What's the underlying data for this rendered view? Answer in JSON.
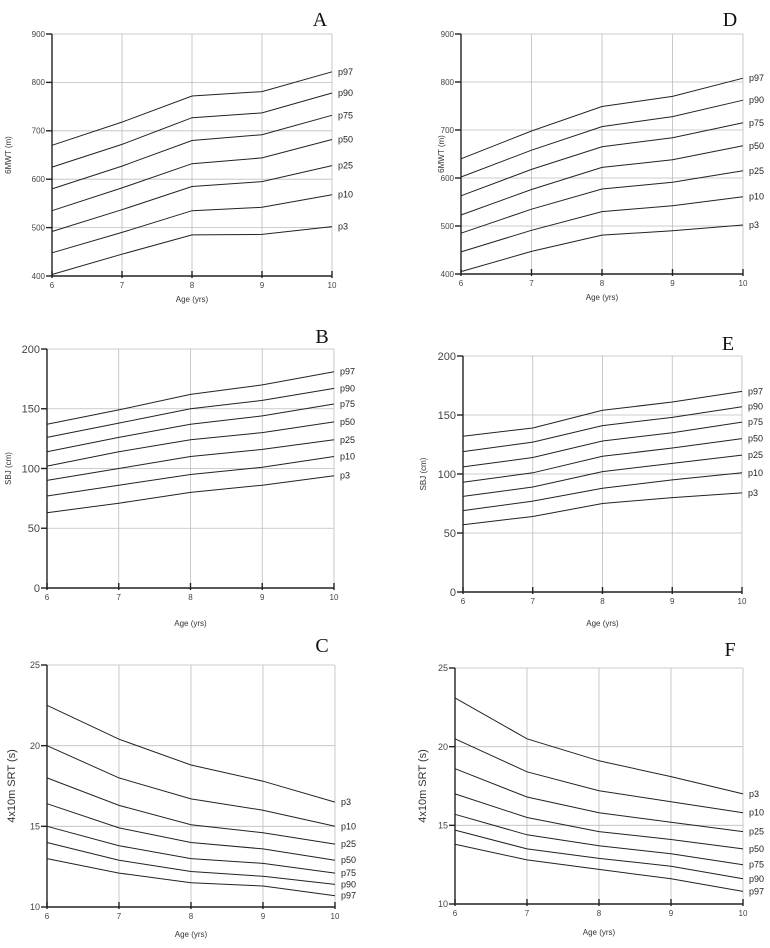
{
  "chart_data": [
    {
      "panel": "A",
      "type": "line",
      "xlabel": "Age (yrs)",
      "ylabel": "6MWT (m)",
      "xlim": [
        6,
        10
      ],
      "ylim": [
        400,
        900
      ],
      "x": [
        6,
        7,
        8,
        9,
        10
      ],
      "xticks": [
        6,
        7,
        8,
        9,
        10
      ],
      "yticks": [
        400,
        500,
        600,
        700,
        800,
        900
      ],
      "grid": true,
      "series": [
        {
          "name": "p97",
          "values": [
            670,
            718,
            772,
            781,
            822
          ]
        },
        {
          "name": "p90",
          "values": [
            625,
            672,
            727,
            737,
            778
          ]
        },
        {
          "name": "p75",
          "values": [
            580,
            627,
            680,
            692,
            732
          ]
        },
        {
          "name": "p50",
          "values": [
            535,
            582,
            632,
            644,
            682
          ]
        },
        {
          "name": "p25",
          "values": [
            492,
            537,
            585,
            595,
            628
          ]
        },
        {
          "name": "p10",
          "values": [
            448,
            490,
            535,
            542,
            568
          ]
        },
        {
          "name": "p3",
          "values": [
            403,
            445,
            485,
            486,
            502
          ]
        }
      ]
    },
    {
      "panel": "B",
      "type": "line",
      "xlabel": "Age (yrs)",
      "ylabel": "SBJ (cm)",
      "xlim": [
        6,
        10
      ],
      "ylim": [
        0,
        200
      ],
      "x": [
        6,
        7,
        8,
        9,
        10
      ],
      "xticks": [
        6,
        7,
        8,
        9,
        10
      ],
      "yticks": [
        0,
        50,
        100,
        150,
        200
      ],
      "grid": true,
      "series": [
        {
          "name": "p97",
          "values": [
            137,
            149,
            162,
            170,
            181
          ]
        },
        {
          "name": "p90",
          "values": [
            126,
            138,
            150,
            157,
            167
          ]
        },
        {
          "name": "p75",
          "values": [
            114,
            126,
            137,
            144,
            154
          ]
        },
        {
          "name": "p50",
          "values": [
            102,
            114,
            124,
            130,
            139
          ]
        },
        {
          "name": "p25",
          "values": [
            90,
            100,
            110,
            116,
            124
          ]
        },
        {
          "name": "p10",
          "values": [
            77,
            86,
            95,
            101,
            110
          ]
        },
        {
          "name": "p3",
          "values": [
            63,
            71,
            80,
            86,
            94
          ]
        }
      ]
    },
    {
      "panel": "C",
      "type": "line",
      "xlabel": "Age (yrs)",
      "ylabel": "4x10m SRT (s)",
      "xlim": [
        6,
        10
      ],
      "ylim": [
        10,
        25
      ],
      "x": [
        6,
        7,
        8,
        9,
        10
      ],
      "xticks": [
        6,
        7,
        8,
        9,
        10
      ],
      "yticks": [
        10,
        15,
        20,
        25
      ],
      "grid": true,
      "series": [
        {
          "name": "p3",
          "values": [
            22.5,
            20.4,
            18.8,
            17.8,
            16.5
          ]
        },
        {
          "name": "p10",
          "values": [
            20.0,
            18.0,
            16.7,
            16.0,
            15.0
          ]
        },
        {
          "name": "p25",
          "values": [
            18.0,
            16.3,
            15.1,
            14.6,
            13.9
          ]
        },
        {
          "name": "p50",
          "values": [
            16.4,
            14.9,
            14.0,
            13.6,
            12.9
          ]
        },
        {
          "name": "p75",
          "values": [
            15.0,
            13.8,
            13.0,
            12.7,
            12.1
          ]
        },
        {
          "name": "p90",
          "values": [
            14.0,
            12.9,
            12.2,
            11.9,
            11.4
          ]
        },
        {
          "name": "p97",
          "values": [
            13.0,
            12.1,
            11.5,
            11.3,
            10.7
          ]
        }
      ]
    },
    {
      "panel": "D",
      "type": "line",
      "xlabel": "Age (yrs)",
      "ylabel": "6MWT (m)",
      "xlim": [
        6,
        10
      ],
      "ylim": [
        400,
        900
      ],
      "x": [
        6,
        7,
        8,
        9,
        10
      ],
      "xticks": [
        6,
        7,
        8,
        9,
        10
      ],
      "yticks": [
        400,
        500,
        600,
        700,
        800,
        900
      ],
      "grid": true,
      "series": [
        {
          "name": "p97",
          "values": [
            640,
            698,
            749,
            770,
            808
          ]
        },
        {
          "name": "p90",
          "values": [
            602,
            658,
            707,
            728,
            762
          ]
        },
        {
          "name": "p75",
          "values": [
            563,
            618,
            665,
            684,
            715
          ]
        },
        {
          "name": "p50",
          "values": [
            523,
            576,
            622,
            638,
            667
          ]
        },
        {
          "name": "p25",
          "values": [
            485,
            535,
            577,
            591,
            615
          ]
        },
        {
          "name": "p10",
          "values": [
            446,
            491,
            530,
            542,
            561
          ]
        },
        {
          "name": "p3",
          "values": [
            405,
            447,
            481,
            490,
            502
          ]
        }
      ]
    },
    {
      "panel": "E",
      "type": "line",
      "xlabel": "Age (yrs)",
      "ylabel": "SBJ (cm)",
      "xlim": [
        6,
        10
      ],
      "ylim": [
        0,
        200
      ],
      "x": [
        6,
        7,
        8,
        9,
        10
      ],
      "xticks": [
        6,
        7,
        8,
        9,
        10
      ],
      "yticks": [
        0,
        50,
        100,
        150,
        200
      ],
      "grid": true,
      "series": [
        {
          "name": "p97",
          "values": [
            132,
            139,
            154,
            161,
            170
          ]
        },
        {
          "name": "p90",
          "values": [
            119,
            127,
            141,
            148,
            157
          ]
        },
        {
          "name": "p75",
          "values": [
            106,
            114,
            128,
            135,
            144
          ]
        },
        {
          "name": "p50",
          "values": [
            93,
            101,
            115,
            122,
            130
          ]
        },
        {
          "name": "p25",
          "values": [
            81,
            89,
            102,
            109,
            116
          ]
        },
        {
          "name": "p10",
          "values": [
            69,
            77,
            88,
            95,
            101
          ]
        },
        {
          "name": "p3",
          "values": [
            57,
            64,
            75,
            80,
            84
          ]
        }
      ]
    },
    {
      "panel": "F",
      "type": "line",
      "xlabel": "Age (yrs)",
      "ylabel": "4x10m SRT (s)",
      "xlim": [
        6,
        10
      ],
      "ylim": [
        10,
        25
      ],
      "x": [
        6,
        7,
        8,
        9,
        10
      ],
      "xticks": [
        6,
        7,
        8,
        9,
        10
      ],
      "yticks": [
        10,
        15,
        20,
        25
      ],
      "grid": true,
      "series": [
        {
          "name": "p3",
          "values": [
            23.1,
            20.5,
            19.1,
            18.1,
            17.0
          ]
        },
        {
          "name": "p10",
          "values": [
            20.5,
            18.4,
            17.2,
            16.5,
            15.8
          ]
        },
        {
          "name": "p25",
          "values": [
            18.6,
            16.8,
            15.8,
            15.2,
            14.6
          ]
        },
        {
          "name": "p50",
          "values": [
            17.0,
            15.5,
            14.6,
            14.1,
            13.5
          ]
        },
        {
          "name": "p75",
          "values": [
            15.7,
            14.4,
            13.7,
            13.2,
            12.5
          ]
        },
        {
          "name": "p90",
          "values": [
            14.7,
            13.5,
            12.9,
            12.4,
            11.6
          ]
        },
        {
          "name": "p97",
          "values": [
            13.8,
            12.8,
            12.2,
            11.6,
            10.8
          ]
        }
      ]
    }
  ]
}
